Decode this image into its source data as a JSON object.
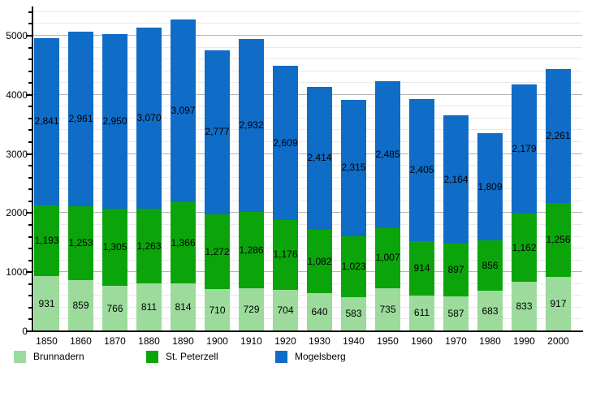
{
  "chart_data": {
    "type": "bar",
    "stacked": true,
    "categories": [
      "1850",
      "1860",
      "1870",
      "1880",
      "1890",
      "1900",
      "1910",
      "1920",
      "1930",
      "1940",
      "1950",
      "1960",
      "1970",
      "1980",
      "1990",
      "2000"
    ],
    "series": [
      {
        "name": "Brunnadern",
        "color": "#9CDB9C",
        "values": [
          931,
          859,
          766,
          811,
          814,
          710,
          729,
          704,
          640,
          583,
          735,
          611,
          587,
          683,
          833,
          917
        ]
      },
      {
        "name": "St. Peterzell",
        "color": "#0BA50B",
        "values": [
          1193,
          1253,
          1305,
          1263,
          1366,
          1272,
          1286,
          1176,
          1082,
          1023,
          1007,
          914,
          897,
          856,
          1162,
          1256
        ]
      },
      {
        "name": "Mogelsberg",
        "color": "#0F6CC7",
        "values": [
          2841,
          2961,
          2950,
          3070,
          3097,
          2777,
          2932,
          2609,
          2414,
          2315,
          2485,
          2405,
          2164,
          1809,
          2179,
          2261
        ]
      }
    ],
    "ylim": [
      0,
      5494
    ],
    "ytick_labels": [
      "0",
      "1000",
      "2000",
      "3000",
      "4000",
      "5000"
    ],
    "yticks_major": [
      0,
      1000,
      2000,
      3000,
      4000,
      5000
    ],
    "ytick_minor_step": 200,
    "ytick_minor_max": 5400,
    "grid": true,
    "xlabel": "",
    "ylabel": "",
    "title": "",
    "legend_position": "bottom-left"
  },
  "colors": {
    "background": "#ffffff",
    "axis": "#000000",
    "grid_major": "#b4b4b4",
    "grid_minor": "#e9e9e9",
    "value_text": "#000000"
  },
  "layout_note_values_visible": true
}
